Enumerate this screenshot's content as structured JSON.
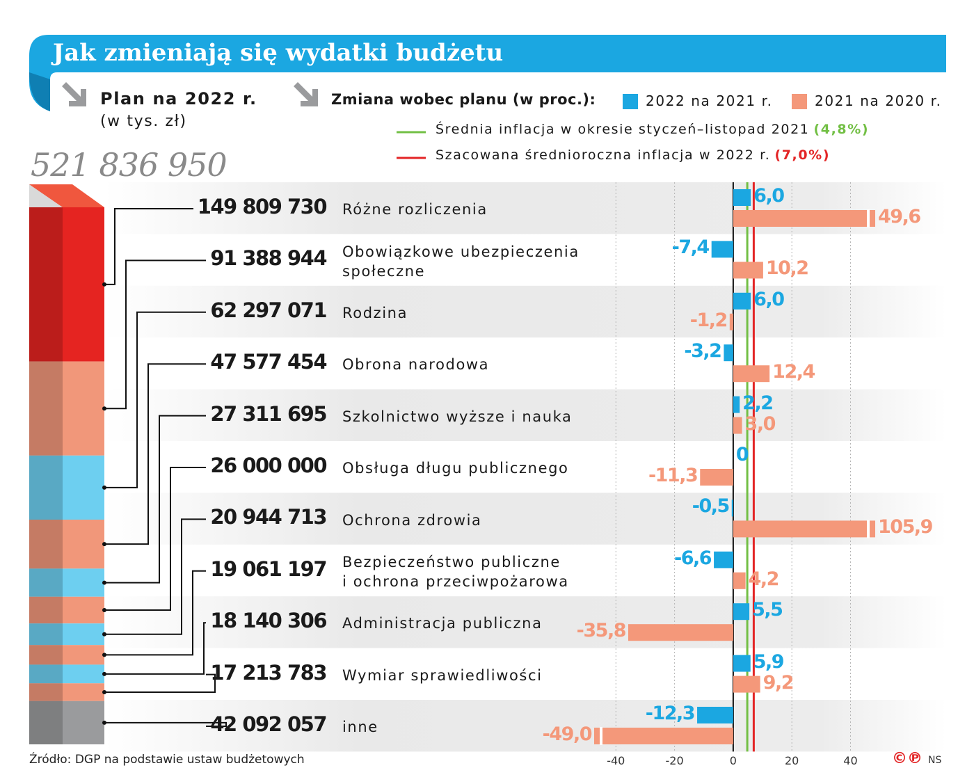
{
  "chart_data": {
    "type": "bar",
    "orientation": "horizontal",
    "title": "Jak zmieniają się wydatki budżetu",
    "amounts_heading": "Plan na 2022 r.",
    "amounts_unit": "(w tys. zł)",
    "total": 521836950,
    "total_label": "521 836 950",
    "amounts": [
      149809730,
      91388944,
      62297071,
      47577454,
      27311695,
      26000000,
      20944713,
      19061197,
      18140306,
      17213783,
      42092057
    ],
    "amount_labels": [
      "149 809 730",
      "91 388 944",
      "62 297 071",
      "47 577 454",
      "27 311 695",
      "26 000 000",
      "20 944 713",
      "19 061 197",
      "18 140 306",
      "17 213 783",
      "42 092 057"
    ],
    "amount_colors": [
      "#e52421",
      "#f1977a",
      "#6dcff0",
      "#f1977a",
      "#6dcff0",
      "#f1977a",
      "#6dcff0",
      "#f1977a",
      "#6dcff0",
      "#f1977a",
      "#9a9b9d"
    ],
    "changes_heading": "Zmiana wobec planu (w proc.):",
    "categories": [
      "Różne rozliczenia",
      "Obowiązkowe ubezpieczenia\nspołeczne",
      "Rodzina",
      "Obrona narodowa",
      "Szkolnictwo wyższe i nauka",
      "Obsługa długu publicznego",
      "Ochrona zdrowia",
      "Bezpieczeństwo publiczne\ni ochrona przeciwpożarowa",
      "Administracja publiczna",
      "Wymiar sprawiedliwości",
      "inne"
    ],
    "series": [
      {
        "name": "2022 na 2021 r.",
        "color": "#1ba7e1",
        "values": [
          6.0,
          -7.4,
          6.0,
          -3.2,
          2.2,
          0,
          -0.5,
          -6.6,
          5.5,
          5.9,
          -12.3
        ],
        "value_labels": [
          "6,0",
          "-7,4",
          "6,0",
          "-3,2",
          "2,2",
          "0",
          "-0,5",
          "-6,6",
          "5,5",
          "5,9",
          "-12,3"
        ]
      },
      {
        "name": "2021 na 2020 r.",
        "color": "#f4987a",
        "values": [
          49.6,
          10.2,
          -1.2,
          12.4,
          3.0,
          -11.3,
          105.9,
          4.2,
          -35.8,
          9.2,
          -49.0
        ],
        "value_labels": [
          "49,6",
          "10,2",
          "-1,2",
          "12,4",
          "3,0",
          "-11,3",
          "105,9",
          "4,2",
          "-35,8",
          "9,2",
          "-49,0"
        ]
      }
    ],
    "reference_lines": [
      {
        "name": "Średnia inflacja w okresie styczeń–listopad 2021",
        "value": 4.8,
        "value_label": "(4,8%)",
        "color": "#72bf44"
      },
      {
        "name": "Szacowana średnioroczna inflacja w 2022 r.",
        "value": 7.0,
        "value_label": "(7,0%)",
        "color": "#e32526"
      }
    ],
    "xlim": [
      -46,
      47
    ],
    "xticks": [
      -40,
      -20,
      0,
      20,
      40
    ],
    "grid": true,
    "source": "Źródło: DGP na podstawie ustaw budżetowych",
    "rights": "©℗",
    "credit": "NS"
  }
}
